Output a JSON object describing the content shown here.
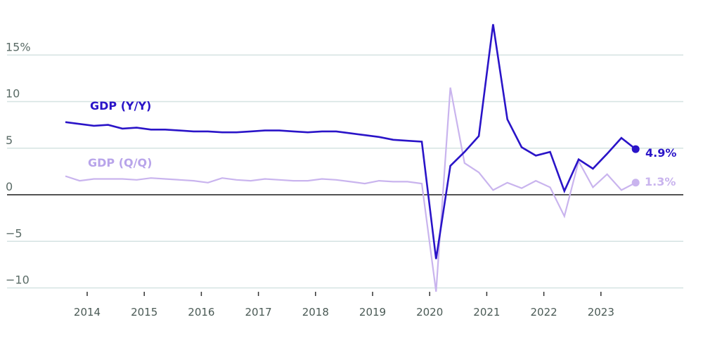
{
  "chart_data": {
    "type": "line",
    "title": "",
    "xlabel": "",
    "ylabel": "",
    "ylim": [
      -11,
      19
    ],
    "y_ticks": [
      {
        "value": 15,
        "label": "15%"
      },
      {
        "value": 10,
        "label": "10"
      },
      {
        "value": 5,
        "label": "5"
      },
      {
        "value": 0,
        "label": "0"
      },
      {
        "value": -5,
        "label": "-5"
      },
      {
        "value": -10,
        "label": "-10"
      }
    ],
    "x_ticks": [
      "2014",
      "2015",
      "2016",
      "2017",
      "2018",
      "2019",
      "2020",
      "2021",
      "2022",
      "2023"
    ],
    "grid": true,
    "legend_position": "inline labels",
    "x": [
      "2013Q3",
      "2013Q4",
      "2014Q1",
      "2014Q2",
      "2014Q3",
      "2014Q4",
      "2015Q1",
      "2015Q2",
      "2015Q3",
      "2015Q4",
      "2016Q1",
      "2016Q2",
      "2016Q3",
      "2016Q4",
      "2017Q1",
      "2017Q2",
      "2017Q3",
      "2017Q4",
      "2018Q1",
      "2018Q2",
      "2018Q3",
      "2018Q4",
      "2019Q1",
      "2019Q2",
      "2019Q3",
      "2019Q4",
      "2020Q1",
      "2020Q2",
      "2020Q3",
      "2020Q4",
      "2021Q1",
      "2021Q2",
      "2021Q3",
      "2021Q4",
      "2022Q1",
      "2022Q2",
      "2022Q3",
      "2022Q4",
      "2023Q1",
      "2023Q2",
      "2023Q3"
    ],
    "series": [
      {
        "name": "GDP (Y/Y)",
        "color": "#2a14c8",
        "values": [
          7.8,
          7.6,
          7.4,
          7.5,
          7.1,
          7.2,
          7.0,
          7.0,
          6.9,
          6.8,
          6.8,
          6.7,
          6.7,
          6.8,
          6.9,
          6.9,
          6.8,
          6.7,
          6.8,
          6.8,
          6.6,
          6.4,
          6.2,
          5.9,
          5.8,
          5.7,
          -6.9,
          3.1,
          4.6,
          6.3,
          18.3,
          8.1,
          5.1,
          4.2,
          4.6,
          0.4,
          3.8,
          2.8,
          4.4,
          6.1,
          4.9
        ],
        "end_label": "4.9%"
      },
      {
        "name": "GDP (Q/Q)",
        "color": "#c9b4ee",
        "values": [
          2.0,
          1.5,
          1.7,
          1.7,
          1.7,
          1.6,
          1.8,
          1.7,
          1.6,
          1.5,
          1.3,
          1.8,
          1.6,
          1.5,
          1.7,
          1.6,
          1.5,
          1.5,
          1.7,
          1.6,
          1.4,
          1.2,
          1.5,
          1.4,
          1.4,
          1.2,
          -10.4,
          11.5,
          3.4,
          2.4,
          0.5,
          1.3,
          0.7,
          1.5,
          0.8,
          -2.3,
          3.6,
          0.8,
          2.2,
          0.5,
          1.3
        ],
        "end_label": "1.3%"
      }
    ]
  },
  "labels": {
    "yy": "GDP (Y/Y)",
    "qq": "GDP (Q/Q)",
    "yy_end": "4.9%",
    "qq_end": "1.3%"
  }
}
